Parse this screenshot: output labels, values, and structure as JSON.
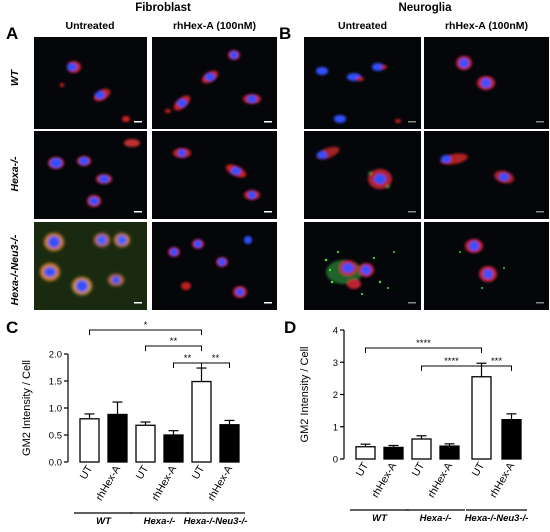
{
  "panels": {
    "a": "A",
    "b": "B",
    "c": "C",
    "d": "D"
  },
  "section_titles": {
    "fibroblast": "Fibroblast",
    "neuroglia": "Neuroglia"
  },
  "column_headers": {
    "fib_untreated": "Untreated",
    "fib_treated": "rhHex-A (100nM)",
    "neu_untreated": "Untreated",
    "neu_treated": "rhHex-A (100nM)"
  },
  "row_labels": {
    "wt": "WT",
    "hexa": "Hexa-/-",
    "hexa_neu3": "Hexa-/-Neu3-/-"
  },
  "colors": {
    "gm2_stain": "#e02020",
    "nuclei": "#3050ff",
    "lysosome": "#30d040",
    "background": "#05060a"
  },
  "chart_data": [
    {
      "type": "bar",
      "panel": "C",
      "ylabel": "GM2 Intensity / Cell",
      "ylim": [
        0,
        2.0
      ],
      "yticks": [
        "0.0",
        "0.5",
        "1.0",
        "1.5",
        "2.0"
      ],
      "bar_labels": [
        "UT",
        "rhHex-A",
        "UT",
        "rhHex-A",
        "UT",
        "rhHex-A"
      ],
      "values": [
        0.8,
        0.88,
        0.68,
        0.5,
        1.49,
        0.69
      ],
      "errors": [
        0.09,
        0.23,
        0.06,
        0.08,
        0.25,
        0.08
      ],
      "fills": [
        "white",
        "black",
        "white",
        "black",
        "white",
        "black"
      ],
      "groups": [
        "WT",
        "Hexa-/-",
        "Hexa-/-Neu3-/-"
      ],
      "significance": [
        {
          "from": 0,
          "to": 4,
          "label": "*"
        },
        {
          "from": 2,
          "to": 4,
          "label": "**"
        },
        {
          "from": 3,
          "to": 4,
          "label": "**"
        },
        {
          "from": 4,
          "to": 5,
          "label": "**"
        }
      ]
    },
    {
      "type": "bar",
      "panel": "D",
      "ylabel": "GM2 Intensity / Cell",
      "ylim": [
        0,
        4
      ],
      "yticks": [
        "0",
        "1",
        "2",
        "3",
        "4"
      ],
      "bar_labels": [
        "UT",
        "rhHex-A",
        "UT",
        "rhHex-A",
        "UT",
        "rhHex-A"
      ],
      "values": [
        0.38,
        0.36,
        0.62,
        0.4,
        2.55,
        1.22
      ],
      "errors": [
        0.08,
        0.06,
        0.1,
        0.07,
        0.42,
        0.18
      ],
      "fills": [
        "white",
        "black",
        "white",
        "black",
        "white",
        "black"
      ],
      "groups": [
        "WT",
        "Hexa-/-",
        "Hexa-/-Neu3-/-"
      ],
      "significance": [
        {
          "from": 0,
          "to": 4,
          "label": "****"
        },
        {
          "from": 2,
          "to": 4,
          "label": "****"
        },
        {
          "from": 4,
          "to": 5,
          "label": "***"
        }
      ]
    }
  ]
}
